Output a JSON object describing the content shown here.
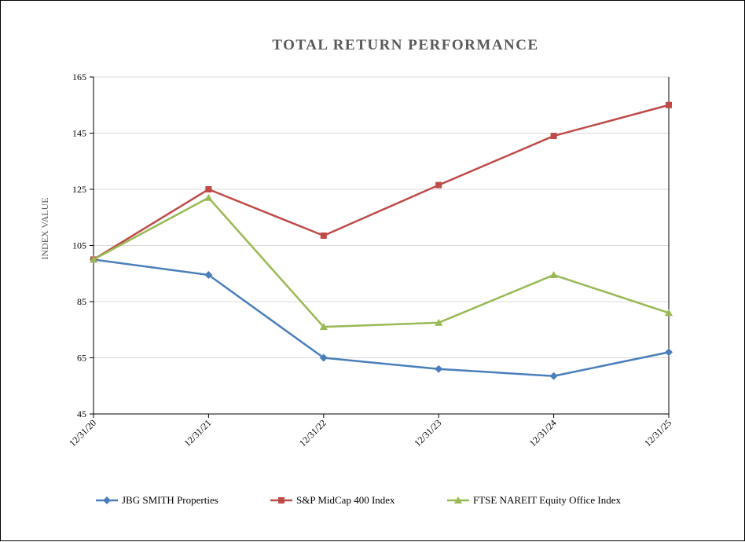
{
  "chart_data": {
    "type": "line",
    "title": "TOTAL RETURN PERFORMANCE",
    "xlabel": "",
    "ylabel": "INDEX VALUE",
    "categories": [
      "12/31/20",
      "12/31/21",
      "12/31/22",
      "12/31/23",
      "12/31/24",
      "12/31/25"
    ],
    "ylim": [
      45,
      165
    ],
    "yticks": [
      45,
      65,
      85,
      105,
      125,
      145,
      165
    ],
    "grid": true,
    "legend_position": "bottom",
    "series": [
      {
        "name": "JBG SMITH Properties",
        "color": "#4a7ebb",
        "marker": "diamond",
        "values": [
          100,
          94.5,
          65,
          61,
          58.5,
          67
        ]
      },
      {
        "name": "S&P MidCap 400 Index",
        "color": "#be4b48",
        "marker": "square",
        "values": [
          100,
          125,
          108.5,
          126.5,
          144,
          155
        ]
      },
      {
        "name": "FTSE NAREIT Equity Office Index",
        "color": "#98b954",
        "marker": "triangle",
        "values": [
          100,
          122,
          76,
          77.5,
          94.5,
          81
        ]
      }
    ]
  }
}
